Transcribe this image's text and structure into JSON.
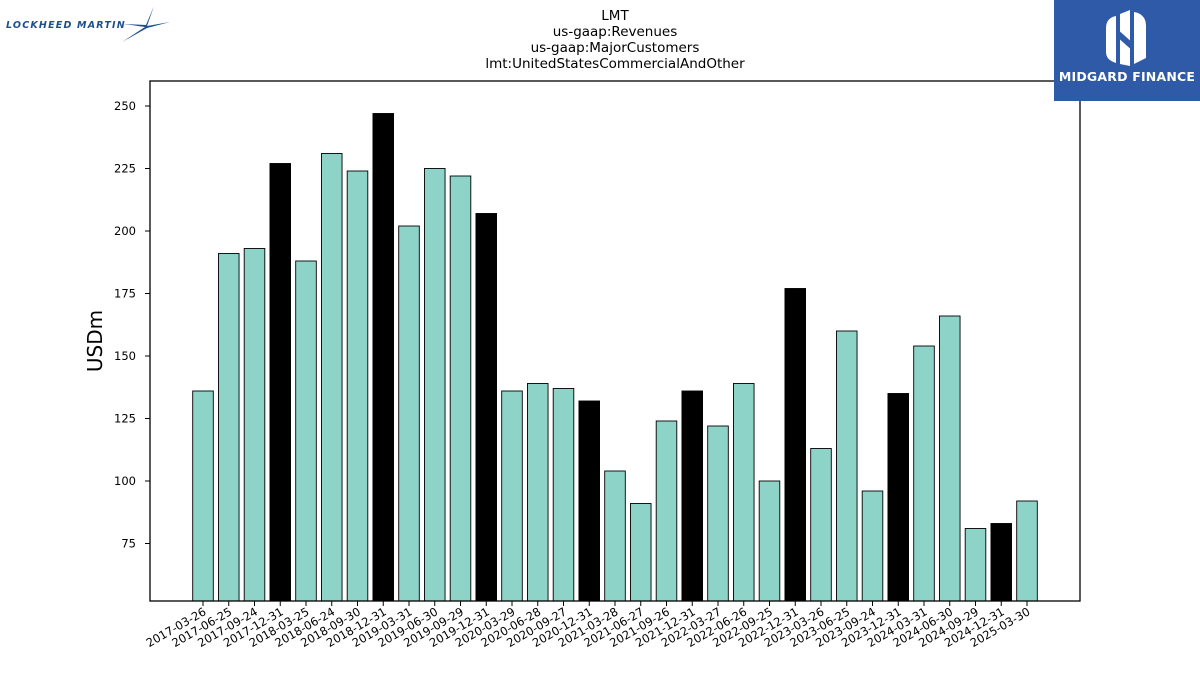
{
  "logos": {
    "left_text": "LOCKHEED MARTIN",
    "right_text": "MIDGARD FINANCE"
  },
  "colors": {
    "bar_default": "#8dd3c7",
    "bar_highlight": "#000000",
    "logo_right_bg": "#2f5aa8",
    "logo_left_text": "#1d4f8c"
  },
  "chart_data": {
    "type": "bar",
    "title_lines": [
      "LMT",
      "us-gaap:Revenues",
      "us-gaap:MajorCustomers",
      "lmt:UnitedStatesCommercialAndOther"
    ],
    "xlabel": "",
    "ylabel": "USDm",
    "ylim": [
      52,
      260
    ],
    "yticks": [
      75,
      100,
      125,
      150,
      175,
      200,
      225,
      250
    ],
    "grid": false,
    "categories": [
      "2017-03-26",
      "2017-06-25",
      "2017-09-24",
      "2017-12-31",
      "2018-03-25",
      "2018-06-24",
      "2018-09-30",
      "2018-12-31",
      "2019-03-31",
      "2019-06-30",
      "2019-09-29",
      "2019-12-31",
      "2020-03-29",
      "2020-06-28",
      "2020-09-27",
      "2020-12-31",
      "2021-03-28",
      "2021-06-27",
      "2021-09-26",
      "2021-12-31",
      "2022-03-27",
      "2022-06-26",
      "2022-09-25",
      "2022-12-31",
      "2023-03-26",
      "2023-06-25",
      "2023-09-24",
      "2023-12-31",
      "2024-03-31",
      "2024-06-30",
      "2024-09-29",
      "2024-12-31",
      "2025-03-30"
    ],
    "values": [
      136,
      191,
      193,
      227,
      188,
      231,
      224,
      247,
      202,
      225,
      222,
      207,
      136,
      139,
      137,
      132,
      104,
      91,
      124,
      136,
      122,
      139,
      100,
      177,
      113,
      160,
      96,
      135,
      154,
      166,
      81,
      83,
      92
    ],
    "highlight": [
      false,
      false,
      false,
      true,
      false,
      false,
      false,
      true,
      false,
      false,
      false,
      true,
      false,
      false,
      false,
      true,
      false,
      false,
      false,
      true,
      false,
      false,
      false,
      true,
      false,
      false,
      false,
      true,
      false,
      false,
      false,
      true,
      false
    ]
  }
}
